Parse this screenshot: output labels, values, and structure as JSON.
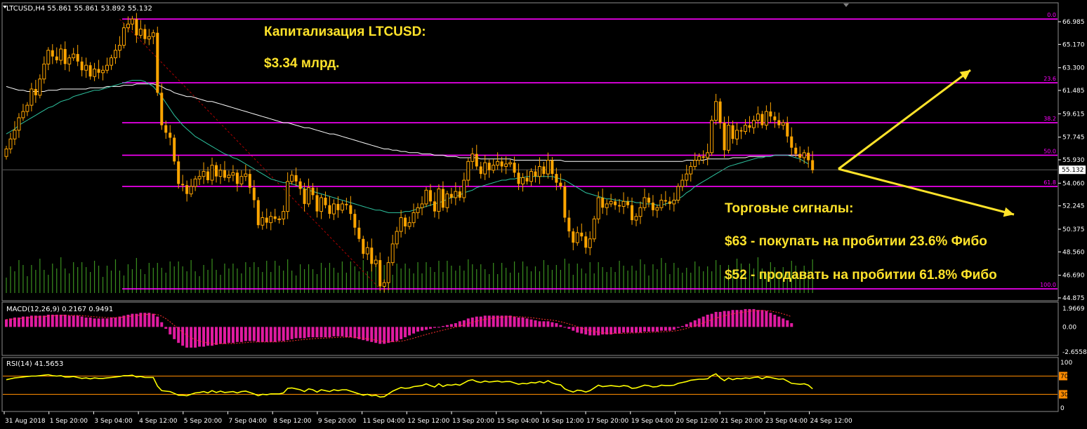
{
  "chart_data": [
    {
      "type": "candlestick",
      "title": "LTCUSD,H4  55.861 55.861 53.892 55.132",
      "symbol": "LTCUSD",
      "timeframe": "H4",
      "last_bar": {
        "open": 55.861,
        "high": 55.861,
        "low": 53.892,
        "close": 55.132
      },
      "current_price_label": "55.132",
      "ylim": [
        44.875,
        68.0
      ],
      "y_ticks": [
        "66.985",
        "65.170",
        "63.300",
        "61.485",
        "59.615",
        "57.745",
        "55.930",
        "54.060",
        "52.245",
        "50.375",
        "48.560",
        "46.690",
        "44.875"
      ],
      "x_ticks": [
        "31 Aug 2018",
        "1 Sep 20:00",
        "3 Sep 04:00",
        "4 Sep 12:00",
        "5 Sep 20:00",
        "7 Sep 04:00",
        "8 Sep 12:00",
        "9 Sep 20:00",
        "11 Sep 04:00",
        "12 Sep 12:00",
        "13 Sep 20:00",
        "15 Sep 04:00",
        "16 Sep 12:00",
        "17 Sep 20:00",
        "19 Sep 04:00",
        "20 Sep 12:00",
        "21 Sep 20:00",
        "23 Sep 04:00",
        "24 Sep 12:00"
      ],
      "closes": [
        56.8,
        57.6,
        58.3,
        59.3,
        59.8,
        60.3,
        61.6,
        61.1,
        62.4,
        63.6,
        64.7,
        64.2,
        63.9,
        64.8,
        63.6,
        64.1,
        64.4,
        63.8,
        63.1,
        63.5,
        62.6,
        63.2,
        62.9,
        63.1,
        63.5,
        64.1,
        64.7,
        65.1,
        66.5,
        66.8,
        67.2,
        65.9,
        66.4,
        65.6,
        65.8,
        66.1,
        61.3,
        58.7,
        58.1,
        57.7,
        55.8,
        54.0,
        53.9,
        53.2,
        53.8,
        54.4,
        54.6,
        55.0,
        54.3,
        55.5,
        54.6,
        55.1,
        54.5,
        54.7,
        54.9,
        54.0,
        54.6,
        54.8,
        53.7,
        52.7,
        50.7,
        51.3,
        50.9,
        51.4,
        51.2,
        51.2,
        51.8,
        54.2,
        54.7,
        54.2,
        53.6,
        52.4,
        53.7,
        53.1,
        51.8,
        52.9,
        52.3,
        51.6,
        52.4,
        51.9,
        52.4,
        52.3,
        51.6,
        50.5,
        49.6,
        48.4,
        48.9,
        47.6,
        47.9,
        45.8,
        46.1,
        47.7,
        49.2,
        50.2,
        51.3,
        50.6,
        50.9,
        51.7,
        52.1,
        52.4,
        53.5,
        52.6,
        51.8,
        53.6,
        52.1,
        53.2,
        52.9,
        53.4,
        52.9,
        54.3,
        55.8,
        56.4,
        55.4,
        54.8,
        55.7,
        55.1,
        55.5,
        55.8,
        55.4,
        55.6,
        55.7,
        54.9,
        54.0,
        54.5,
        54.2,
        55.0,
        54.6,
        55.4,
        54.8,
        55.9,
        54.8,
        54.1,
        53.8,
        51.3,
        50.2,
        49.3,
        50.1,
        49.8,
        48.9,
        49.6,
        51.2,
        52.9,
        52.1,
        52.4,
        52.6,
        52.3,
        52.2,
        52.6,
        52.3,
        51.1,
        51.4,
        52.1,
        52.9,
        52.5,
        51.9,
        52.1,
        52.7,
        52.6,
        52.4,
        52.7,
        53.8,
        54.3,
        54.8,
        55.4,
        55.9,
        56.2,
        56.1,
        56.5,
        59.1,
        60.6,
        58.9,
        56.7,
        58.7,
        57.6,
        58.3,
        58.2,
        58.7,
        58.5,
        59.1,
        59.6,
        58.7,
        59.8,
        59.4,
        59.1,
        58.7,
        58.9,
        57.8,
        56.9,
        56.4,
        56.1,
        56.5,
        55.9,
        55.1
      ],
      "series": [
        {
          "name": "",
          "color": "#ffffff",
          "values": [
            61.8,
            61.7,
            61.6,
            61.5,
            61.5,
            61.4,
            61.4,
            61.4,
            61.4,
            61.4,
            61.5,
            61.5,
            61.5,
            61.6,
            61.6,
            61.6,
            61.6,
            61.6,
            61.6,
            61.6,
            61.7,
            61.7,
            61.7,
            61.7,
            61.8,
            61.8,
            61.8,
            61.8,
            61.9,
            61.9,
            61.9,
            62.0,
            62.0,
            62.0,
            62.0,
            62.0,
            61.9,
            61.8,
            61.6,
            61.5,
            61.3,
            61.2,
            61.1,
            61.0,
            61.0,
            60.9,
            60.8,
            60.7,
            60.6,
            60.6,
            60.5,
            60.4,
            60.3,
            60.2,
            60.1,
            60.0,
            59.9,
            59.8,
            59.7,
            59.6,
            59.5,
            59.4,
            59.3,
            59.2,
            59.1,
            59.0,
            58.9,
            58.9,
            58.8,
            58.7,
            58.6,
            58.5,
            58.5,
            58.4,
            58.3,
            58.2,
            58.1,
            58.0,
            58.0,
            57.9,
            57.8,
            57.7,
            57.6,
            57.5,
            57.4,
            57.3,
            57.2,
            57.1,
            57.0,
            56.9,
            56.8,
            56.8,
            56.7,
            56.7,
            56.6,
            56.6,
            56.5,
            56.5,
            56.5,
            56.4,
            56.4,
            56.4,
            56.3,
            56.3,
            56.3,
            56.2,
            56.2,
            56.2,
            56.1,
            56.1,
            56.1,
            56.1,
            56.1,
            56.0,
            56.0,
            56.0,
            56.0,
            56.0,
            56.0,
            56.0,
            56.0,
            55.9,
            55.9,
            55.9,
            55.9,
            55.9,
            55.9,
            55.9,
            55.9,
            55.9,
            55.9,
            55.9,
            55.9,
            55.8,
            55.8,
            55.8,
            55.8,
            55.8,
            55.8,
            55.8,
            55.8,
            55.8,
            55.8,
            55.8,
            55.8,
            55.8,
            55.8,
            55.8,
            55.8,
            55.8,
            55.8,
            55.8,
            55.8,
            55.8,
            55.8,
            55.8,
            55.8,
            55.8,
            55.8,
            55.8,
            55.8,
            55.8,
            55.9,
            55.9,
            55.9,
            55.9,
            55.9,
            56.0,
            56.0,
            56.0,
            56.0,
            56.0,
            56.0,
            56.1,
            56.1,
            56.1,
            56.1,
            56.2,
            56.2,
            56.2,
            56.2,
            56.2,
            56.2,
            56.3,
            56.3,
            56.3,
            56.3,
            56.3,
            56.3,
            56.3
          ]
        },
        {
          "name": "",
          "color": "#2ec4a0",
          "values": [
            58.0,
            58.2,
            58.4,
            58.7,
            58.9,
            59.1,
            59.3,
            59.5,
            59.7,
            59.9,
            60.1,
            60.2,
            60.4,
            60.6,
            60.7,
            60.8,
            61.0,
            61.1,
            61.2,
            61.3,
            61.4,
            61.5,
            61.5,
            61.6,
            61.7,
            61.8,
            61.9,
            62.0,
            62.1,
            62.2,
            62.3,
            62.3,
            62.3,
            62.2,
            62.0,
            61.8,
            61.4,
            61.0,
            60.5,
            60.0,
            59.5,
            59.1,
            58.7,
            58.4,
            58.1,
            57.8,
            57.6,
            57.4,
            57.2,
            57.0,
            56.8,
            56.6,
            56.4,
            56.3,
            56.1,
            56.0,
            55.8,
            55.6,
            55.4,
            55.2,
            55.0,
            54.8,
            54.6,
            54.4,
            54.3,
            54.2,
            54.1,
            54.1,
            54.0,
            53.9,
            53.8,
            53.6,
            53.5,
            53.4,
            53.3,
            53.2,
            53.1,
            53.0,
            52.9,
            52.8,
            52.7,
            52.6,
            52.5,
            52.4,
            52.3,
            52.2,
            52.1,
            52.0,
            51.9,
            51.9,
            51.8,
            51.7,
            51.7,
            51.7,
            51.7,
            51.8,
            51.8,
            51.9,
            52.0,
            52.1,
            52.2,
            52.3,
            52.4,
            52.5,
            52.6,
            52.8,
            52.9,
            53.0,
            53.1,
            53.3,
            53.4,
            53.5,
            53.7,
            53.8,
            53.9,
            54.0,
            54.1,
            54.2,
            54.3,
            54.3,
            54.4,
            54.4,
            54.5,
            54.5,
            54.6,
            54.6,
            54.6,
            54.6,
            54.6,
            54.6,
            54.6,
            54.5,
            54.4,
            54.3,
            54.1,
            53.9,
            53.7,
            53.5,
            53.3,
            53.2,
            53.1,
            53.0,
            52.9,
            52.8,
            52.8,
            52.7,
            52.7,
            52.6,
            52.6,
            52.6,
            52.5,
            52.5,
            52.4,
            52.4,
            52.4,
            52.3,
            52.3,
            52.4,
            52.5,
            52.6,
            52.8,
            53.0,
            53.3,
            53.5,
            53.8,
            54.0,
            54.2,
            54.4,
            54.6,
            54.8,
            55.0,
            55.2,
            55.4,
            55.5,
            55.6,
            55.7,
            55.8,
            55.9,
            56.0,
            56.1,
            56.1,
            56.2,
            56.2,
            56.3,
            56.3,
            56.3,
            56.3,
            56.2,
            56.1,
            56.0,
            55.8,
            55.6
          ]
        }
      ],
      "fibonacci": [
        {
          "label": "0.0",
          "price": 67.2
        },
        {
          "label": "23.6",
          "price": 62.1
        },
        {
          "label": "38.2",
          "price": 58.9
        },
        {
          "label": "50.0",
          "price": 56.3
        },
        {
          "label": "61.8",
          "price": 53.8
        },
        {
          "label": "100.0",
          "price": 45.6
        }
      ],
      "annotations": [
        "Капитализация LTCUSD:",
        "$3.34 млрд.",
        "Торговые сигналы:",
        "$63 - покупать на пробитии 23.6% Фибо",
        "$52 - продавать на пробитии 61.8% Фибо"
      ]
    },
    {
      "type": "bar",
      "title": "MACD(12,26,9) 0.2167 0.9491",
      "indicator": "MACD",
      "params": "12,26,9",
      "main_value": 0.2167,
      "signal_value": 0.9491,
      "ylim": [
        -2.6558,
        1.9669
      ],
      "y_ticks": [
        "1.9669",
        "0.00",
        "-2.6558"
      ],
      "histogram": [
        0.8,
        0.9,
        1.0,
        1.0,
        1.1,
        1.1,
        1.2,
        1.2,
        1.2,
        1.2,
        1.3,
        1.3,
        1.3,
        1.3,
        1.3,
        1.2,
        1.2,
        1.2,
        1.1,
        1.0,
        1.0,
        0.9,
        0.9,
        0.9,
        0.9,
        1.0,
        1.0,
        1.1,
        1.2,
        1.3,
        1.4,
        1.4,
        1.5,
        1.5,
        1.5,
        1.4,
        1.1,
        0.5,
        -0.2,
        -0.8,
        -1.3,
        -1.7,
        -2.0,
        -2.2,
        -2.2,
        -2.2,
        -2.1,
        -2.1,
        -2.0,
        -2.0,
        -1.9,
        -1.8,
        -1.8,
        -1.7,
        -1.7,
        -1.6,
        -1.6,
        -1.5,
        -1.5,
        -1.5,
        -1.6,
        -1.6,
        -1.6,
        -1.6,
        -1.6,
        -1.5,
        -1.5,
        -1.4,
        -1.3,
        -1.2,
        -1.2,
        -1.2,
        -1.1,
        -1.1,
        -1.1,
        -1.1,
        -1.1,
        -1.1,
        -1.0,
        -1.0,
        -1.0,
        -1.1,
        -1.1,
        -1.2,
        -1.3,
        -1.4,
        -1.5,
        -1.6,
        -1.7,
        -1.8,
        -1.8,
        -1.7,
        -1.6,
        -1.5,
        -1.3,
        -1.1,
        -0.9,
        -0.7,
        -0.5,
        -0.4,
        -0.3,
        -0.2,
        -0.1,
        0.0,
        0.1,
        0.2,
        0.3,
        0.4,
        0.6,
        0.7,
        0.9,
        1.0,
        1.1,
        1.1,
        1.2,
        1.2,
        1.2,
        1.2,
        1.2,
        1.2,
        1.2,
        1.1,
        1.0,
        1.0,
        0.9,
        0.8,
        0.7,
        0.6,
        0.6,
        0.6,
        0.5,
        0.4,
        0.2,
        0.0,
        -0.2,
        -0.4,
        -0.6,
        -0.7,
        -0.8,
        -0.9,
        -0.9,
        -0.9,
        -0.8,
        -0.8,
        -0.8,
        -0.7,
        -0.7,
        -0.6,
        -0.6,
        -0.6,
        -0.6,
        -0.6,
        -0.5,
        -0.5,
        -0.5,
        -0.5,
        -0.4,
        -0.4,
        -0.4,
        -0.3,
        -0.1,
        0.1,
        0.3,
        0.5,
        0.7,
        0.9,
        1.1,
        1.3,
        1.4,
        1.6,
        1.6,
        1.7,
        1.7,
        1.8,
        1.8,
        1.8,
        1.9,
        1.9,
        1.9,
        1.8,
        1.8,
        1.7,
        1.5,
        1.3,
        1.1,
        0.9,
        0.7,
        0.4
      ],
      "signal_line_color": "#ff3030",
      "histogram_color": "#e01ba0"
    },
    {
      "type": "line",
      "title": "RSI(14) 41.5653",
      "indicator": "RSI",
      "period": 14,
      "value": 41.5653,
      "ylim": [
        0,
        100
      ],
      "y_ticks": [
        "100",
        "70",
        "30",
        "0"
      ],
      "levels": [
        70,
        30
      ],
      "values": [
        62,
        64,
        66,
        67,
        68,
        69,
        70,
        70,
        71,
        72,
        73,
        71,
        70,
        71,
        68,
        68,
        69,
        67,
        65,
        66,
        64,
        66,
        65,
        65,
        66,
        67,
        68,
        69,
        71,
        71,
        72,
        68,
        69,
        67,
        67,
        67,
        48,
        38,
        37,
        36,
        32,
        28,
        28,
        27,
        30,
        33,
        34,
        36,
        33,
        38,
        34,
        37,
        34,
        35,
        36,
        33,
        36,
        37,
        34,
        31,
        27,
        30,
        29,
        31,
        31,
        31,
        33,
        43,
        44,
        42,
        40,
        36,
        42,
        40,
        35,
        40,
        38,
        36,
        40,
        38,
        40,
        40,
        37,
        34,
        31,
        28,
        30,
        27,
        28,
        24,
        25,
        31,
        37,
        41,
        45,
        43,
        44,
        47,
        48,
        49,
        53,
        49,
        46,
        53,
        47,
        51,
        50,
        52,
        50,
        55,
        60,
        62,
        58,
        56,
        59,
        57,
        58,
        59,
        57,
        58,
        58,
        55,
        52,
        54,
        53,
        56,
        55,
        58,
        55,
        60,
        55,
        52,
        51,
        42,
        38,
        35,
        39,
        38,
        35,
        38,
        44,
        50,
        47,
        48,
        49,
        48,
        47,
        49,
        48,
        43,
        44,
        47,
        50,
        49,
        46,
        47,
        50,
        49,
        49,
        50,
        54,
        56,
        58,
        61,
        62,
        63,
        63,
        64,
        71,
        75,
        66,
        60,
        66,
        62,
        65,
        64,
        66,
        65,
        67,
        68,
        64,
        68,
        67,
        65,
        63,
        64,
        59,
        54,
        53,
        52,
        53,
        50,
        42
      ],
      "line_color": "#ffff00",
      "level_color": "#ff8c00"
    }
  ],
  "colors": {
    "background": "#000000",
    "bull": "#ffa500",
    "bear": "#ffa500",
    "fibo": "#ff00ff",
    "annotation": "#ffe32a",
    "volume": "#3a8f1f",
    "grid": "#ffffff"
  }
}
